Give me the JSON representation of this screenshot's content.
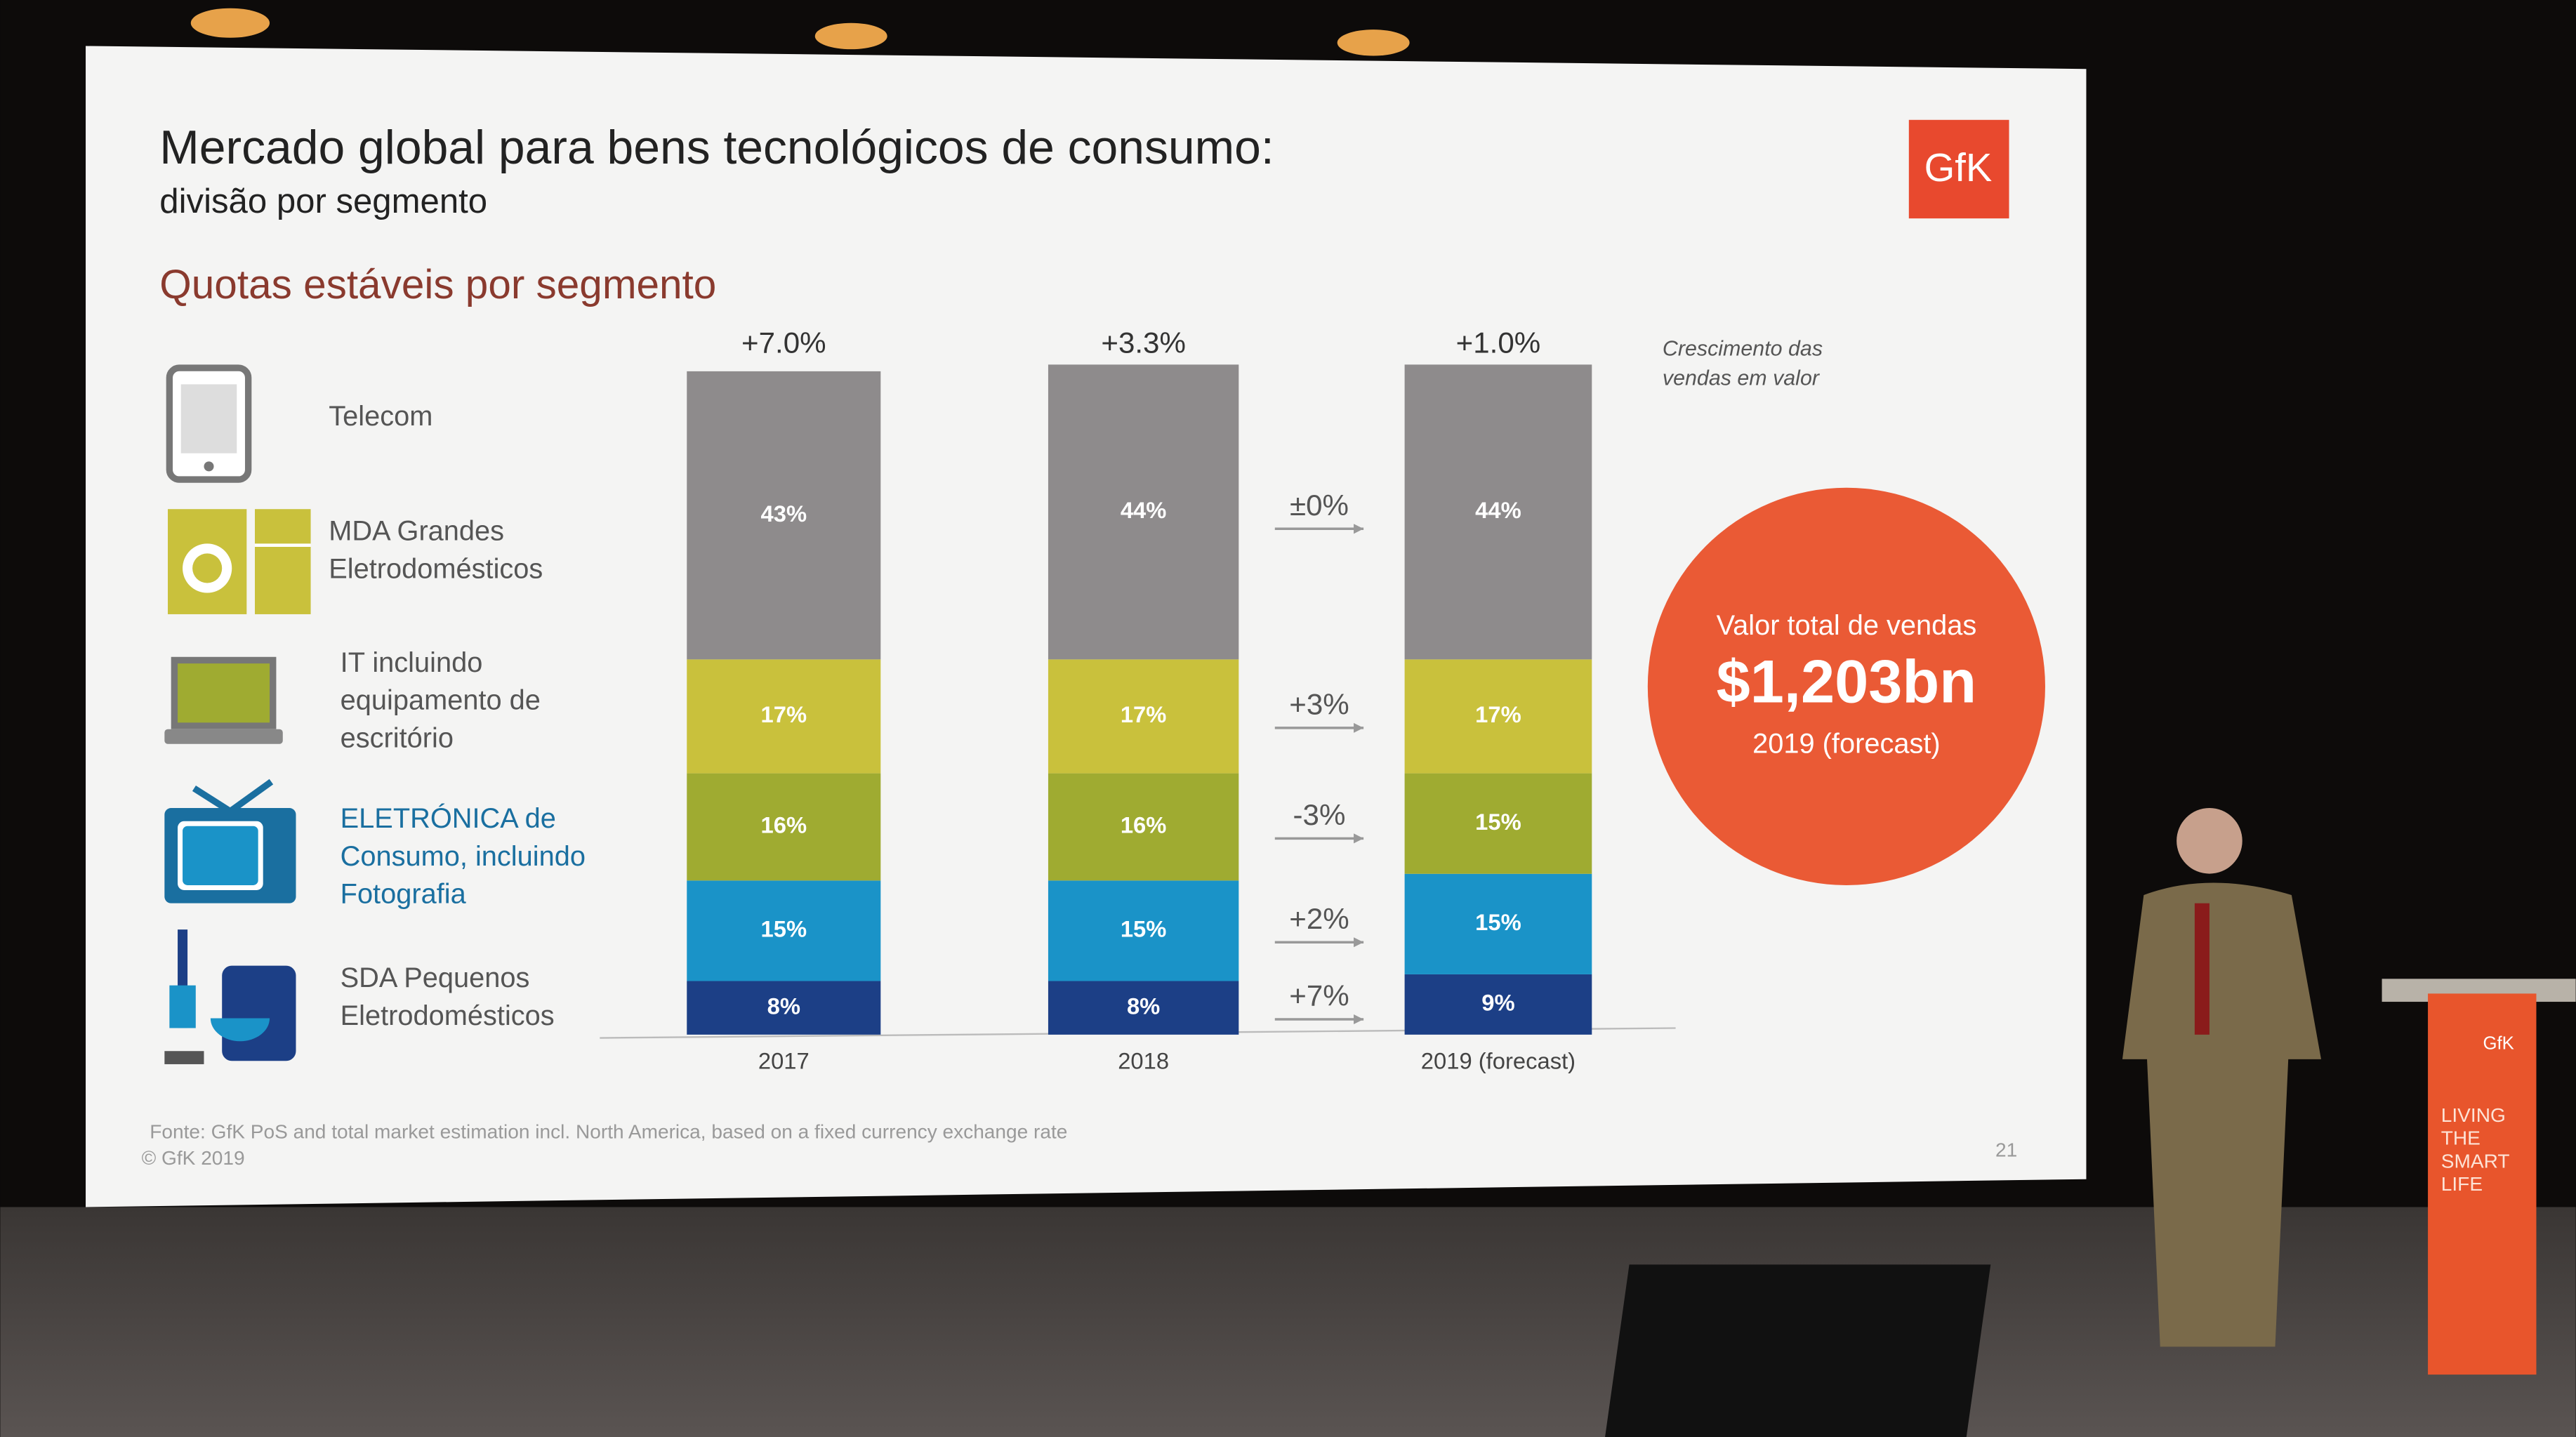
{
  "header": {
    "title": "Mercado global para bens tecnológicos de consumo:",
    "subtitle": "divisão por segmento",
    "logo": "GfK"
  },
  "chart_data": {
    "type": "stacked-bar",
    "title": "Quotas estáveis  por segmento",
    "categories": [
      "2017",
      "2018",
      "2019 (forecast)"
    ],
    "series": [
      {
        "name": "Telecom",
        "color": "#8e8b8c",
        "values": [
          43,
          44,
          44
        ],
        "value_labels": [
          "43%",
          "44%",
          "44%"
        ]
      },
      {
        "name": "MDA Grandes Eletrodomésticos",
        "color": "#c9c13c",
        "values": [
          17,
          17,
          17
        ],
        "value_labels": [
          "17%",
          "17%",
          "17%"
        ]
      },
      {
        "name": "IT incluindo equipamento de escritório",
        "color": "#9fab31",
        "values": [
          16,
          16,
          15
        ],
        "value_labels": [
          "16%",
          "16%",
          "15%"
        ]
      },
      {
        "name": "ELETRÓNICA de Consumo, incluindo Fotografia",
        "color": "#1a93c8",
        "values": [
          15,
          15,
          15
        ],
        "value_labels": [
          "15%",
          "15%",
          "15%"
        ]
      },
      {
        "name": "SDA Pequenos Eletrodomésticos",
        "color": "#1c3f86",
        "values": [
          8,
          8,
          9
        ],
        "value_labels": [
          "8%",
          "8%",
          "9%"
        ]
      }
    ],
    "ylim": [
      0,
      100
    ],
    "total_growth_labels": [
      "+7.0%",
      "+3.3%",
      "+1.0%"
    ],
    "segment_change_labels": [
      "±0%",
      "+3%",
      "-3%",
      "+2%",
      "+7%"
    ],
    "growth_note": "Crescimento das vendas em valor"
  },
  "callout": {
    "line1": "Valor total de vendas",
    "value": "$1,203bn",
    "line3": "2019 (forecast)"
  },
  "footer": {
    "source": "Fonte: GfK PoS and total market estimation incl. North America, based on a fixed currency exchange rate",
    "copyright": "© GfK 2019",
    "page": "21"
  },
  "podium": {
    "logo": "GfK",
    "slogan": "LIVING THE SMART LIFE"
  }
}
